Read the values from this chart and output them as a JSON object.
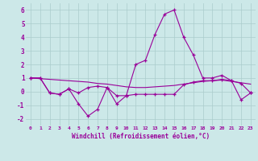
{
  "xlabel": "Windchill (Refroidissement éolien,°C)",
  "x": [
    0,
    1,
    2,
    3,
    4,
    5,
    6,
    7,
    8,
    9,
    10,
    11,
    12,
    13,
    14,
    15,
    16,
    17,
    18,
    19,
    20,
    21,
    22,
    23
  ],
  "line1": [
    1.0,
    1.0,
    -0.1,
    -0.2,
    0.2,
    -0.9,
    -1.8,
    -1.3,
    0.3,
    -0.9,
    -0.3,
    2.0,
    2.3,
    4.2,
    5.7,
    6.0,
    4.0,
    2.7,
    1.0,
    1.0,
    1.2,
    0.8,
    -0.6,
    -0.1
  ],
  "line2": [
    1.0,
    1.0,
    -0.1,
    -0.2,
    0.2,
    -0.1,
    0.3,
    0.4,
    0.3,
    -0.3,
    -0.3,
    -0.2,
    -0.2,
    -0.2,
    -0.2,
    -0.2,
    0.5,
    0.7,
    0.8,
    0.8,
    0.9,
    0.8,
    0.6,
    -0.1
  ],
  "line3": [
    1.0,
    0.95,
    0.9,
    0.85,
    0.8,
    0.75,
    0.7,
    0.6,
    0.55,
    0.45,
    0.35,
    0.3,
    0.3,
    0.35,
    0.4,
    0.45,
    0.55,
    0.65,
    0.75,
    0.8,
    0.85,
    0.75,
    0.65,
    0.55
  ],
  "line_color": "#990099",
  "bg_color": "#cce8e8",
  "grid_color": "#aacccc",
  "ylim": [
    -2.5,
    6.5
  ],
  "yticks": [
    -2,
    -1,
    0,
    1,
    2,
    3,
    4,
    5,
    6
  ]
}
